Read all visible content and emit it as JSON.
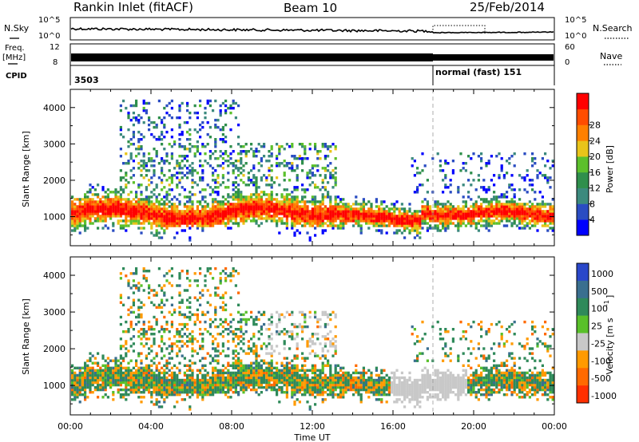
{
  "header": {
    "station": "Rankin Inlet (fitACF)",
    "beam": "Beam 10",
    "date": "25/Feb/2014"
  },
  "status_panels": {
    "nsky_label": "N.Sky",
    "nsearch_label": "N.Search",
    "nsky_ticks": [
      "10^5",
      "10^0"
    ],
    "nsearch_ticks": [
      "10^5",
      "10^0"
    ],
    "freq_label": "Freq.",
    "freq_unit": "[MHz]",
    "freq_ticks": [
      "12",
      "8"
    ],
    "nave_label": "Nave",
    "nave_ticks": [
      "60",
      "0"
    ],
    "cpid_label": "CPID",
    "cpid_value": "3503",
    "mode_label": "normal (fast) 151"
  },
  "colors": {
    "power_scale": [
      "#0000ff",
      "#2a4cc2",
      "#3c8a7e",
      "#2f8f4c",
      "#5cc02c",
      "#e9c41a",
      "#ff8000",
      "#ff4d00",
      "#ff0000"
    ],
    "velocity_scale": [
      "#2a47c9",
      "#3a6f8f",
      "#2f8a5a",
      "#59c02a",
      "#c8c8c8",
      "#ff9a00",
      "#ff6a00",
      "#ff3000"
    ]
  },
  "chart_data": [
    {
      "type": "heatmap",
      "title": "",
      "quantity": "Power",
      "ylabel": "Slant Range [km]",
      "xlabel": "",
      "xlim": [
        "00:00",
        "00:00"
      ],
      "ylim": [
        200,
        4500
      ],
      "y_ticks": [
        "1000",
        "2000",
        "3000",
        "4000"
      ],
      "colorbar_label": "Power [dB]",
      "colorbar_ticks": [
        "4",
        "8",
        "12",
        "16",
        "20",
        "24",
        "28"
      ],
      "colorbar_range": [
        0,
        32
      ]
    },
    {
      "type": "heatmap",
      "title": "",
      "quantity": "Velocity",
      "ylabel": "Slant Range [km]",
      "xlabel": "Time UT",
      "x_ticks": [
        "00:00",
        "04:00",
        "08:00",
        "12:00",
        "16:00",
        "20:00",
        "00:00"
      ],
      "ylim": [
        200,
        4500
      ],
      "y_ticks": [
        "1000",
        "2000",
        "3000",
        "4000"
      ],
      "colorbar_label": "Velocity [m s",
      "colorbar_unit_exponent": "-1",
      "colorbar_ticks": [
        "1000",
        "500",
        "100",
        "25",
        "-25",
        "-100",
        "-500",
        "-1000"
      ]
    }
  ]
}
